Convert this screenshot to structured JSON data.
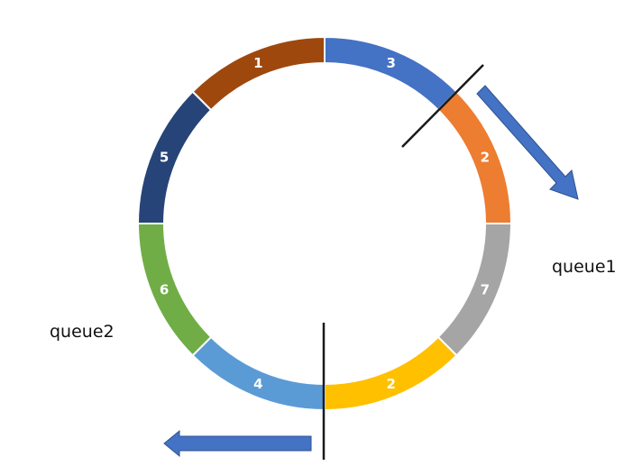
{
  "ring": {
    "segments": [
      {
        "label": "3",
        "color": "#4472C4"
      },
      {
        "label": "2",
        "color": "#ED7D31"
      },
      {
        "label": "7",
        "color": "#A5A5A5"
      },
      {
        "label": "2",
        "color": "#FFC000"
      },
      {
        "label": "4",
        "color": "#5B9BD5"
      },
      {
        "label": "6",
        "color": "#70AD47"
      },
      {
        "label": "5",
        "color": "#264478"
      },
      {
        "label": "1",
        "color": "#9E480E"
      }
    ]
  },
  "queues": {
    "queue1": "queue1",
    "queue2": "queue2"
  },
  "colors": {
    "arrow": "#4472C4",
    "arrow_stroke": "#2F528F",
    "divider": "#1a1a1a"
  }
}
